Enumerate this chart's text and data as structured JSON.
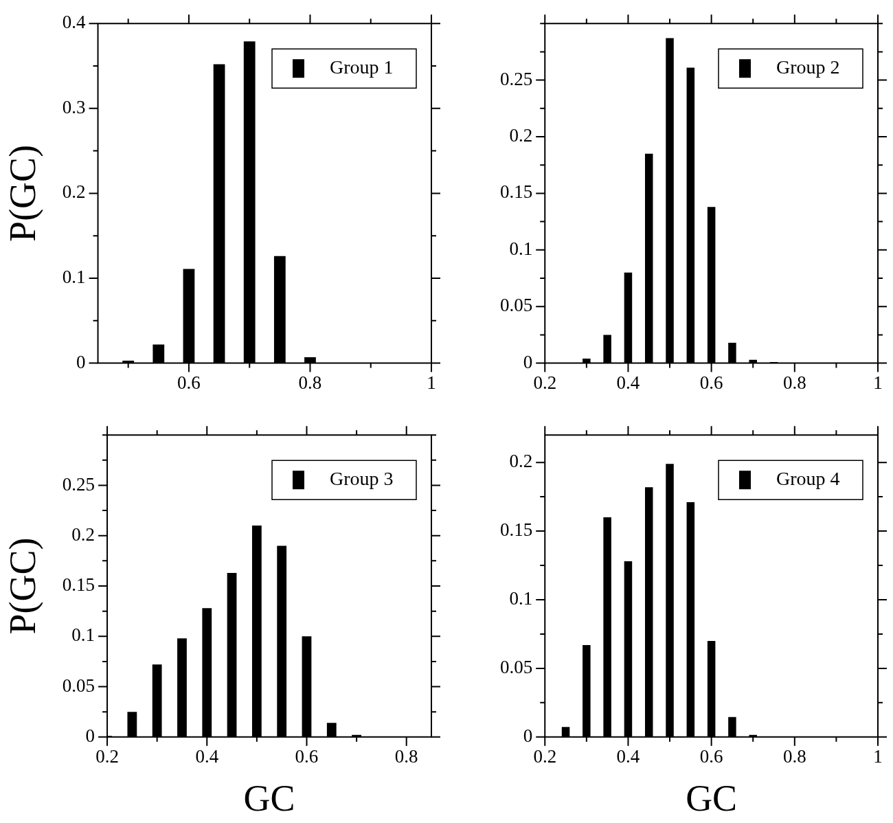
{
  "chart_data": [
    {
      "type": "bar",
      "ylabel": "P(GC)",
      "x": [
        0.5,
        0.55,
        0.6,
        0.65,
        0.7,
        0.75,
        0.8
      ],
      "series": [
        {
          "name": "Group 1",
          "color": "#000000",
          "values": [
            0.003,
            0.022,
            0.111,
            0.352,
            0.379,
            0.126,
            0.007
          ]
        }
      ],
      "xlim": [
        0.45,
        1
      ],
      "xticks": [
        {
          "value": 0.5,
          "label": null
        },
        0.6,
        {
          "value": 0.7,
          "label": null
        },
        0.8,
        {
          "value": 0.9,
          "label": null
        },
        1
      ],
      "ylim": [
        0,
        0.4
      ],
      "yticks": [
        0,
        {
          "value": 0.05,
          "label": null
        },
        0.1,
        {
          "value": 0.15,
          "label": null
        },
        0.2,
        {
          "value": 0.25,
          "label": null
        },
        0.3,
        {
          "value": 0.35,
          "label": null
        },
        0.4
      ],
      "legend": "top right"
    },
    {
      "type": "bar",
      "x": [
        0.3,
        0.35,
        0.4,
        0.45,
        0.5,
        0.55,
        0.6,
        0.65,
        0.7,
        0.75
      ],
      "series": [
        {
          "name": "Group 2",
          "color": "#000000",
          "values": [
            0.004,
            0.025,
            0.08,
            0.185,
            0.287,
            0.261,
            0.138,
            0.018,
            0.003,
            0.001
          ]
        }
      ],
      "xlim": [
        0.2,
        1
      ],
      "xticks": [
        0.2,
        {
          "value": 0.3,
          "label": null
        },
        0.4,
        {
          "value": 0.5,
          "label": null
        },
        0.6,
        {
          "value": 0.7,
          "label": null
        },
        0.8,
        {
          "value": 0.9,
          "label": null
        },
        1
      ],
      "ylim": [
        0,
        0.3
      ],
      "yticks": [
        0,
        {
          "value": 0.025,
          "label": null
        },
        0.05,
        {
          "value": 0.075,
          "label": null
        },
        0.1,
        {
          "value": 0.125,
          "label": null
        },
        0.15,
        {
          "value": 0.175,
          "label": null
        },
        0.2,
        {
          "value": 0.225,
          "label": null
        },
        0.25,
        {
          "value": 0.275,
          "label": null
        },
        {
          "value": 0.3,
          "label": null
        }
      ],
      "legend": "top right"
    },
    {
      "type": "bar",
      "ylabel": "P(GC)",
      "xlabel": "GC",
      "x": [
        0.2,
        0.25,
        0.3,
        0.35,
        0.4,
        0.45,
        0.5,
        0.55,
        0.6,
        0.65,
        0.7,
        0.75
      ],
      "series": [
        {
          "name": "Group 3",
          "color": "#000000",
          "values": [
            0.001,
            0.025,
            0.072,
            0.098,
            0.128,
            0.163,
            0.21,
            0.19,
            0.1,
            0.014,
            0.002,
            0.0003
          ]
        }
      ],
      "xlim": [
        0.2,
        0.85
      ],
      "xticks": [
        0.2,
        {
          "value": 0.3,
          "label": null
        },
        0.4,
        {
          "value": 0.5,
          "label": null
        },
        0.6,
        {
          "value": 0.7,
          "label": null
        },
        0.8
      ],
      "ylim": [
        0,
        0.3
      ],
      "yticks": [
        0,
        {
          "value": 0.025,
          "label": null
        },
        0.05,
        {
          "value": 0.075,
          "label": null
        },
        0.1,
        {
          "value": 0.125,
          "label": null
        },
        0.15,
        {
          "value": 0.175,
          "label": null
        },
        0.2,
        {
          "value": 0.225,
          "label": null
        },
        0.25,
        {
          "value": 0.275,
          "label": null
        },
        {
          "value": 0.3,
          "label": null
        }
      ],
      "legend": "top right"
    },
    {
      "type": "bar",
      "xlabel": "GC",
      "x": [
        0.25,
        0.3,
        0.35,
        0.4,
        0.45,
        0.5,
        0.55,
        0.6,
        0.65,
        0.7
      ],
      "series": [
        {
          "name": "Group 4",
          "color": "#000000",
          "values": [
            0.0073,
            0.067,
            0.16,
            0.128,
            0.182,
            0.199,
            0.171,
            0.07,
            0.0146,
            0.0015
          ]
        }
      ],
      "xlim": [
        0.2,
        1
      ],
      "xticks": [
        0.2,
        {
          "value": 0.3,
          "label": null
        },
        0.4,
        {
          "value": 0.5,
          "label": null
        },
        0.6,
        {
          "value": 0.7,
          "label": null
        },
        0.8,
        {
          "value": 0.9,
          "label": null
        },
        1
      ],
      "ylim": [
        0,
        0.22
      ],
      "yticks": [
        0,
        {
          "value": 0.025,
          "label": null
        },
        0.05,
        {
          "value": 0.075,
          "label": null
        },
        0.1,
        {
          "value": 0.125,
          "label": null
        },
        0.15,
        {
          "value": 0.175,
          "label": null
        },
        0.2
      ],
      "legend": "top right"
    }
  ]
}
